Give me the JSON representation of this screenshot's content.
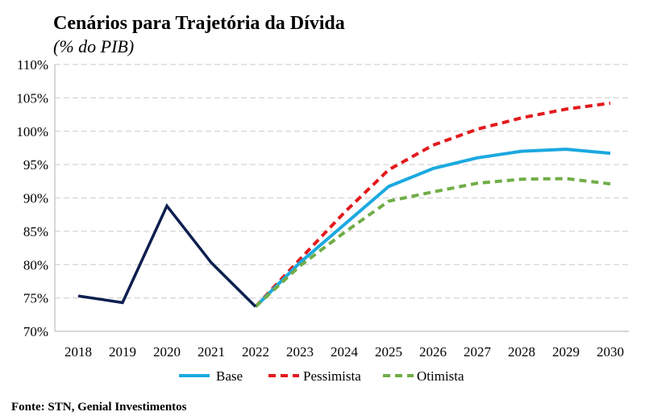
{
  "title": "Cenários para Trajetória da Dívida",
  "subtitle": "(% do PIB)",
  "source": "Fonte: STN, Genial Investimentos",
  "chart_data": {
    "type": "line",
    "title": "Cenários para Trajetória da Dívida",
    "subtitle": "(% do PIB)",
    "xlabel": "",
    "ylabel": "",
    "x": [
      "2018",
      "2019",
      "2020",
      "2021",
      "2022",
      "2023",
      "2024",
      "2025",
      "2026",
      "2027",
      "2028",
      "2029",
      "2030"
    ],
    "ylim": [
      70,
      110
    ],
    "y_ticks": [
      70,
      75,
      80,
      85,
      90,
      95,
      100,
      105,
      110
    ],
    "y_tick_labels": [
      "70%",
      "75%",
      "80%",
      "85%",
      "90%",
      "95%",
      "100%",
      "105%",
      "110%"
    ],
    "grid": "horizontal dashed",
    "legend_position": "bottom",
    "historical": {
      "color": "#0d1f4f",
      "style": "solid",
      "values": [
        75.3,
        74.3,
        88.8,
        80.3,
        73.7,
        null,
        null,
        null,
        null,
        null,
        null,
        null,
        null
      ]
    },
    "series": [
      {
        "name": "Base",
        "color": "#1ba9e0",
        "style": "solid",
        "values": [
          null,
          null,
          null,
          null,
          73.7,
          80.3,
          86.0,
          91.7,
          94.4,
          96.0,
          97.0,
          97.3,
          96.7
        ]
      },
      {
        "name": "Pessimista",
        "color": "#e31a1c",
        "style": "dashed",
        "values": [
          null,
          null,
          null,
          null,
          73.7,
          80.8,
          87.8,
          94.2,
          97.9,
          100.3,
          102.0,
          103.3,
          104.2
        ]
      },
      {
        "name": "Otimista",
        "color": "#70ad47",
        "style": "dashed",
        "values": [
          null,
          null,
          null,
          null,
          73.7,
          79.8,
          84.8,
          89.5,
          90.9,
          92.2,
          92.8,
          92.9,
          92.1
        ]
      }
    ]
  }
}
